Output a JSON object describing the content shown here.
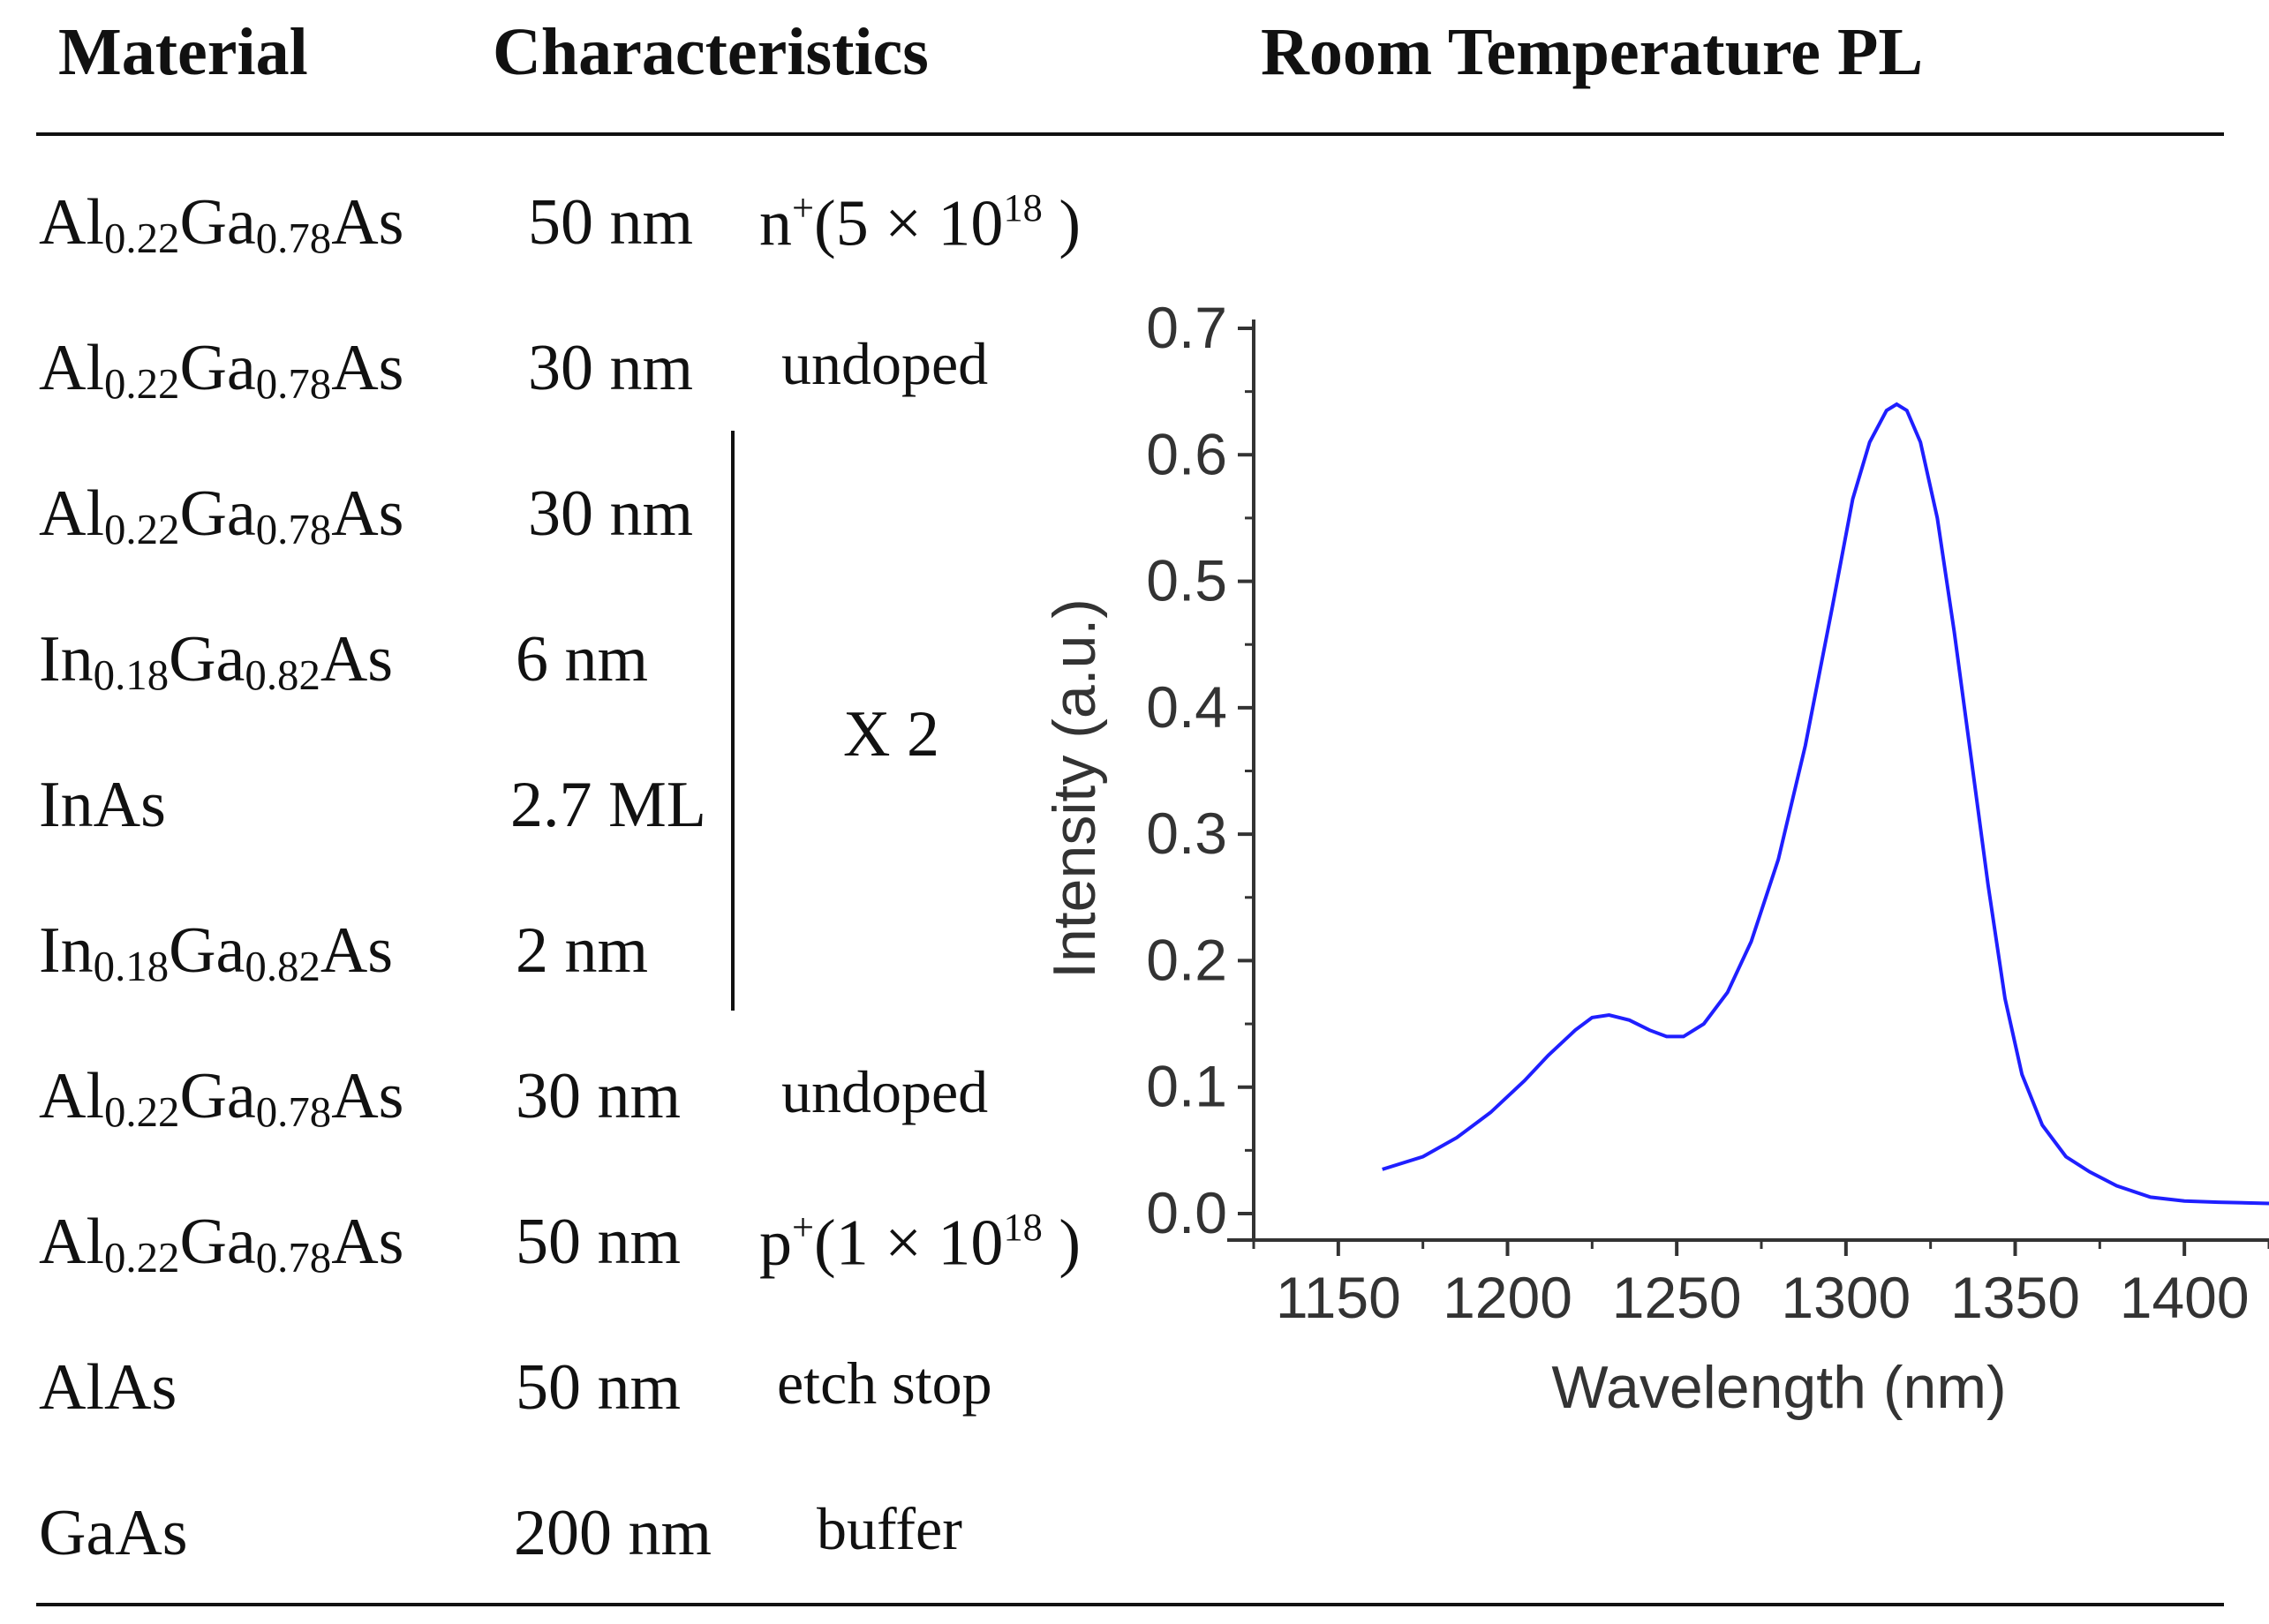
{
  "headers": {
    "material": "Material",
    "characteristics": "Characteristics",
    "pl_title": "Room Temperature PL"
  },
  "rows": [
    {
      "material": {
        "parts": [
          [
            "Al",
            ""
          ],
          [
            "0.22",
            "sub"
          ],
          [
            "Ga",
            ""
          ],
          [
            "0.78",
            "sub"
          ],
          [
            "As",
            ""
          ]
        ]
      },
      "thickness": "50 nm",
      "note": {
        "parts": [
          [
            "n",
            ""
          ],
          [
            "+",
            "sup"
          ],
          [
            "(5 × 10",
            ""
          ],
          [
            "18",
            "sup"
          ],
          [
            " )",
            ""
          ]
        ]
      }
    },
    {
      "material": {
        "parts": [
          [
            "Al",
            ""
          ],
          [
            "0.22",
            "sub"
          ],
          [
            "Ga",
            ""
          ],
          [
            "0.78",
            "sub"
          ],
          [
            "As",
            ""
          ]
        ]
      },
      "thickness": "30 nm",
      "note": {
        "parts": [
          [
            "undoped",
            ""
          ]
        ]
      }
    },
    {
      "material": {
        "parts": [
          [
            "Al",
            ""
          ],
          [
            "0.22",
            "sub"
          ],
          [
            "Ga",
            ""
          ],
          [
            "0.78",
            "sub"
          ],
          [
            "As",
            ""
          ]
        ]
      },
      "thickness": "30 nm",
      "note": {
        "parts": []
      }
    },
    {
      "material": {
        "parts": [
          [
            "In",
            ""
          ],
          [
            "0.18",
            "sub"
          ],
          [
            "Ga",
            ""
          ],
          [
            "0.82",
            "sub"
          ],
          [
            "As",
            ""
          ]
        ]
      },
      "thickness": "6 nm",
      "note": {
        "parts": []
      }
    },
    {
      "material": {
        "parts": [
          [
            "InAs",
            ""
          ]
        ]
      },
      "thickness": "2.7 ML",
      "note": {
        "parts": []
      }
    },
    {
      "material": {
        "parts": [
          [
            "In",
            ""
          ],
          [
            "0.18",
            "sub"
          ],
          [
            "Ga",
            ""
          ],
          [
            "0.82",
            "sub"
          ],
          [
            "As",
            ""
          ]
        ]
      },
      "thickness": "2 nm",
      "note": {
        "parts": []
      }
    },
    {
      "material": {
        "parts": [
          [
            "Al",
            ""
          ],
          [
            "0.22",
            "sub"
          ],
          [
            "Ga",
            ""
          ],
          [
            "0.78",
            "sub"
          ],
          [
            "As",
            ""
          ]
        ]
      },
      "thickness": "30 nm",
      "note": {
        "parts": [
          [
            "undoped",
            ""
          ]
        ]
      }
    },
    {
      "material": {
        "parts": [
          [
            "Al",
            ""
          ],
          [
            "0.22",
            "sub"
          ],
          [
            "Ga",
            ""
          ],
          [
            "0.78",
            "sub"
          ],
          [
            "As",
            ""
          ]
        ]
      },
      "thickness": "50 nm",
      "note": {
        "parts": [
          [
            "p",
            ""
          ],
          [
            "+",
            "sup"
          ],
          [
            "(1 × 10",
            ""
          ],
          [
            "18",
            "sup"
          ],
          [
            " )",
            ""
          ]
        ]
      }
    },
    {
      "material": {
        "parts": [
          [
            "AlAs",
            ""
          ]
        ]
      },
      "thickness": "50 nm",
      "note": {
        "parts": [
          [
            "etch stop",
            ""
          ]
        ]
      }
    },
    {
      "material": {
        "parts": [
          [
            "GaAs",
            ""
          ]
        ]
      },
      "thickness": "200 nm",
      "note": {
        "parts": [
          [
            "buffer",
            ""
          ]
        ]
      }
    }
  ],
  "repeat_label": "X 2",
  "colors": {
    "curve": "#1f1fff",
    "axis": "#333333"
  },
  "chart_data": {
    "type": "line",
    "title": "Room Temperature PL",
    "xlabel": "Wavelength (nm)",
    "ylabel": "Intensity (a.u.)",
    "xlim": [
      1125,
      1425
    ],
    "ylim": [
      0.0,
      0.7
    ],
    "xticks": [
      1150,
      1200,
      1250,
      1300,
      1350,
      1400
    ],
    "yticks": [
      0.0,
      0.1,
      0.2,
      0.3,
      0.4,
      0.5,
      0.6,
      0.7
    ],
    "ytick_labels": [
      "0.0",
      "0.1",
      "0.2",
      "0.3",
      "0.4",
      "0.5",
      "0.6",
      "0.7"
    ],
    "series": [
      {
        "name": "PL",
        "x": [
          1163,
          1175,
          1185,
          1195,
          1205,
          1212,
          1220,
          1225,
          1230,
          1236,
          1242,
          1247,
          1252,
          1258,
          1265,
          1272,
          1280,
          1288,
          1296,
          1302,
          1307,
          1312,
          1315,
          1318,
          1322,
          1327,
          1332,
          1337,
          1342,
          1347,
          1352,
          1358,
          1365,
          1372,
          1380,
          1390,
          1400,
          1410,
          1425
        ],
        "y": [
          0.035,
          0.045,
          0.06,
          0.08,
          0.105,
          0.125,
          0.145,
          0.155,
          0.157,
          0.153,
          0.145,
          0.14,
          0.14,
          0.15,
          0.175,
          0.215,
          0.28,
          0.37,
          0.48,
          0.565,
          0.61,
          0.635,
          0.64,
          0.635,
          0.61,
          0.55,
          0.46,
          0.36,
          0.26,
          0.17,
          0.11,
          0.07,
          0.045,
          0.033,
          0.022,
          0.013,
          0.01,
          0.009,
          0.008
        ]
      }
    ]
  }
}
